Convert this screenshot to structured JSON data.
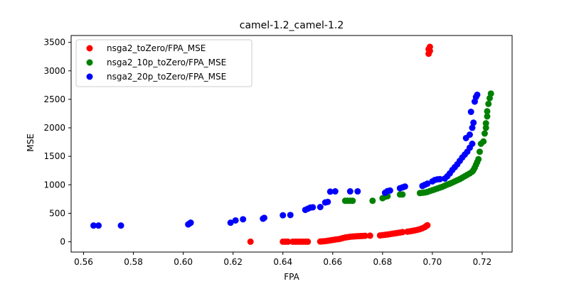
{
  "chart_data": {
    "type": "scatter",
    "title": "camel-1.2_camel-1.2",
    "xlabel": "FPA",
    "ylabel": "MSE",
    "xlim": [
      0.555,
      0.732
    ],
    "ylim": [
      -180,
      3620
    ],
    "x_ticks": [
      "0.56",
      "0.58",
      "0.60",
      "0.62",
      "0.64",
      "0.66",
      "0.68",
      "0.70",
      "0.72"
    ],
    "y_ticks": [
      "0",
      "500",
      "1000",
      "1500",
      "2000",
      "2500",
      "3000",
      "3500"
    ],
    "legend_position": "top-left",
    "grid": false,
    "series": [
      {
        "name": "nsga2_toZero/FPA_MSE",
        "color": "#ff0000",
        "points": [
          [
            0.627,
            2
          ],
          [
            0.64,
            2
          ],
          [
            0.641,
            2
          ],
          [
            0.642,
            2
          ],
          [
            0.644,
            2
          ],
          [
            0.645,
            2
          ],
          [
            0.646,
            2
          ],
          [
            0.647,
            2
          ],
          [
            0.648,
            2
          ],
          [
            0.649,
            2
          ],
          [
            0.65,
            2
          ],
          [
            0.655,
            5
          ],
          [
            0.656,
            8
          ],
          [
            0.657,
            12
          ],
          [
            0.658,
            18
          ],
          [
            0.659,
            25
          ],
          [
            0.66,
            32
          ],
          [
            0.661,
            40
          ],
          [
            0.662,
            45
          ],
          [
            0.663,
            52
          ],
          [
            0.664,
            65
          ],
          [
            0.665,
            75
          ],
          [
            0.666,
            82
          ],
          [
            0.667,
            88
          ],
          [
            0.668,
            92
          ],
          [
            0.669,
            95
          ],
          [
            0.67,
            98
          ],
          [
            0.671,
            100
          ],
          [
            0.672,
            102
          ],
          [
            0.673,
            105
          ],
          [
            0.675,
            108
          ],
          [
            0.679,
            112
          ],
          [
            0.68,
            118
          ],
          [
            0.681,
            122
          ],
          [
            0.682,
            128
          ],
          [
            0.683,
            135
          ],
          [
            0.684,
            142
          ],
          [
            0.685,
            148
          ],
          [
            0.686,
            155
          ],
          [
            0.687,
            162
          ],
          [
            0.688,
            170
          ],
          [
            0.69,
            178
          ],
          [
            0.691,
            185
          ],
          [
            0.692,
            192
          ],
          [
            0.693,
            200
          ],
          [
            0.694,
            210
          ],
          [
            0.695,
            222
          ],
          [
            0.696,
            238
          ],
          [
            0.697,
            258
          ],
          [
            0.6975,
            275
          ],
          [
            0.698,
            290
          ],
          [
            0.6985,
            3300
          ],
          [
            0.699,
            3350
          ],
          [
            0.6985,
            3380
          ],
          [
            0.699,
            3420
          ]
        ]
      },
      {
        "name": "nsga2_10p_toZero/FPA_MSE",
        "color": "#008000",
        "points": [
          [
            0.665,
            720
          ],
          [
            0.666,
            720
          ],
          [
            0.667,
            720
          ],
          [
            0.668,
            720
          ],
          [
            0.676,
            720
          ],
          [
            0.68,
            765
          ],
          [
            0.681,
            790
          ],
          [
            0.682,
            800
          ],
          [
            0.687,
            830
          ],
          [
            0.688,
            830
          ],
          [
            0.695,
            855
          ],
          [
            0.696,
            860
          ],
          [
            0.697,
            865
          ],
          [
            0.698,
            875
          ],
          [
            0.699,
            890
          ],
          [
            0.7,
            905
          ],
          [
            0.701,
            920
          ],
          [
            0.702,
            935
          ],
          [
            0.703,
            950
          ],
          [
            0.704,
            965
          ],
          [
            0.705,
            985
          ],
          [
            0.706,
            1005
          ],
          [
            0.707,
            1020
          ],
          [
            0.708,
            1040
          ],
          [
            0.709,
            1060
          ],
          [
            0.71,
            1080
          ],
          [
            0.711,
            1100
          ],
          [
            0.712,
            1125
          ],
          [
            0.713,
            1150
          ],
          [
            0.714,
            1175
          ],
          [
            0.715,
            1200
          ],
          [
            0.716,
            1230
          ],
          [
            0.7165,
            1260
          ],
          [
            0.717,
            1300
          ],
          [
            0.7175,
            1350
          ],
          [
            0.718,
            1400
          ],
          [
            0.7185,
            1450
          ],
          [
            0.719,
            1580
          ],
          [
            0.7195,
            1720
          ],
          [
            0.7205,
            1760
          ],
          [
            0.721,
            1900
          ],
          [
            0.7215,
            2000
          ],
          [
            0.7215,
            2080
          ],
          [
            0.722,
            2200
          ],
          [
            0.722,
            2290
          ],
          [
            0.7225,
            2420
          ],
          [
            0.723,
            2520
          ],
          [
            0.7235,
            2600
          ]
        ]
      },
      {
        "name": "nsga2_20p_toZero/FPA_MSE",
        "color": "#0000ff",
        "points": [
          [
            0.564,
            285
          ],
          [
            0.566,
            285
          ],
          [
            0.575,
            285
          ],
          [
            0.602,
            305
          ],
          [
            0.6025,
            320
          ],
          [
            0.603,
            335
          ],
          [
            0.619,
            335
          ],
          [
            0.621,
            375
          ],
          [
            0.624,
            395
          ],
          [
            0.632,
            405
          ],
          [
            0.6325,
            420
          ],
          [
            0.64,
            465
          ],
          [
            0.643,
            470
          ],
          [
            0.649,
            560
          ],
          [
            0.65,
            580
          ],
          [
            0.651,
            600
          ],
          [
            0.652,
            605
          ],
          [
            0.655,
            610
          ],
          [
            0.657,
            690
          ],
          [
            0.658,
            700
          ],
          [
            0.659,
            880
          ],
          [
            0.661,
            885
          ],
          [
            0.667,
            885
          ],
          [
            0.67,
            885
          ],
          [
            0.681,
            860
          ],
          [
            0.682,
            890
          ],
          [
            0.683,
            900
          ],
          [
            0.687,
            940
          ],
          [
            0.688,
            955
          ],
          [
            0.689,
            970
          ],
          [
            0.696,
            980
          ],
          [
            0.697,
            1000
          ],
          [
            0.698,
            1020
          ],
          [
            0.7,
            1060
          ],
          [
            0.701,
            1085
          ],
          [
            0.702,
            1095
          ],
          [
            0.703,
            1100
          ],
          [
            0.705,
            1110
          ],
          [
            0.706,
            1150
          ],
          [
            0.707,
            1200
          ],
          [
            0.708,
            1260
          ],
          [
            0.709,
            1310
          ],
          [
            0.71,
            1360
          ],
          [
            0.711,
            1420
          ],
          [
            0.712,
            1480
          ],
          [
            0.713,
            1530
          ],
          [
            0.714,
            1580
          ],
          [
            0.715,
            1650
          ],
          [
            0.716,
            1720
          ],
          [
            0.7135,
            1820
          ],
          [
            0.715,
            1880
          ],
          [
            0.716,
            2000
          ],
          [
            0.7165,
            2090
          ],
          [
            0.7155,
            2280
          ],
          [
            0.717,
            2460
          ],
          [
            0.7175,
            2540
          ],
          [
            0.718,
            2580
          ]
        ]
      }
    ]
  }
}
